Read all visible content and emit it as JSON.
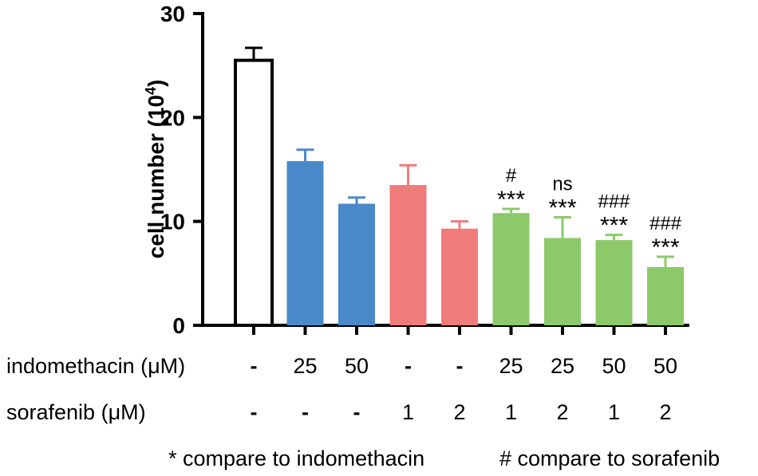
{
  "chart_data": {
    "type": "bar",
    "ylabel": "cell number (10",
    "ylabel_sup": "4",
    "ylabel_close": ")",
    "ylim": [
      0,
      30
    ],
    "yticks": [
      "0",
      "10",
      "20",
      "30"
    ],
    "row_labels": {
      "indomethacin": "indomethacin (μM)",
      "sorafenib": "sorafenib (μM)"
    },
    "categories": [
      {
        "indomethacin": "-",
        "sorafenib": "-"
      },
      {
        "indomethacin": "25",
        "sorafenib": "-"
      },
      {
        "indomethacin": "50",
        "sorafenib": "-"
      },
      {
        "indomethacin": "-",
        "sorafenib": "1"
      },
      {
        "indomethacin": "-",
        "sorafenib": "2"
      },
      {
        "indomethacin": "25",
        "sorafenib": "1"
      },
      {
        "indomethacin": "25",
        "sorafenib": "2"
      },
      {
        "indomethacin": "50",
        "sorafenib": "1"
      },
      {
        "indomethacin": "50",
        "sorafenib": "2"
      }
    ],
    "values": [
      25.5,
      15.8,
      11.7,
      13.5,
      9.3,
      10.8,
      8.4,
      8.2,
      5.6
    ],
    "errors": [
      1.2,
      1.1,
      0.6,
      1.9,
      0.7,
      0.4,
      2.0,
      0.5,
      1.0
    ],
    "colors": [
      "#ffffff",
      "#4a89c9",
      "#4a89c9",
      "#f07b7b",
      "#f07b7b",
      "#8cc96a",
      "#8cc96a",
      "#8cc96a",
      "#8cc96a"
    ],
    "annotations": [
      {
        "bar": 5,
        "lines": [
          "#",
          "***"
        ]
      },
      {
        "bar": 6,
        "lines": [
          "ns",
          "***"
        ]
      },
      {
        "bar": 7,
        "lines": [
          "###",
          "***"
        ]
      },
      {
        "bar": 8,
        "lines": [
          "###",
          "***"
        ]
      }
    ],
    "footnotes": [
      "* compare to indomethacin",
      "# compare to sorafenib"
    ]
  }
}
